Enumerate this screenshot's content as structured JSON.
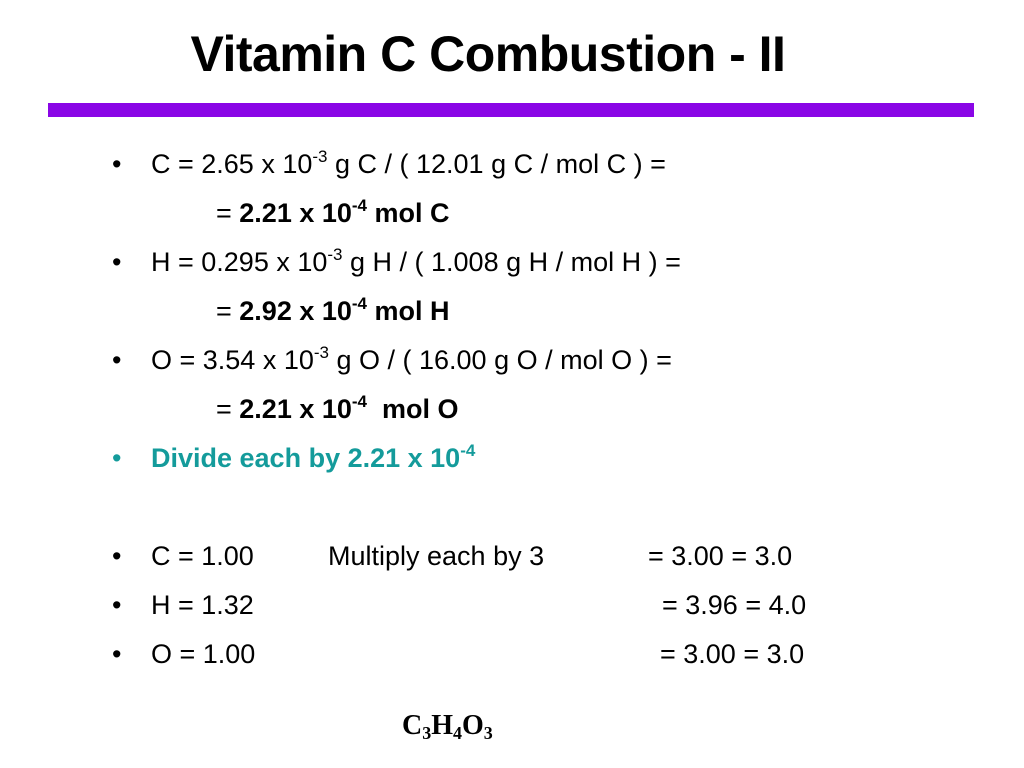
{
  "title": "Vitamin C Combustion - II",
  "accent_color": "#8a06e6",
  "highlight_color": "#149b9b",
  "bullet_glyph": "•",
  "carbon": {
    "calc_pre": "C = 2.65 x 10",
    "calc_exp": "-3",
    "calc_post": " g C / ( 12.01 g C / mol C ) =",
    "result_eq": "= ",
    "result_base": "2.21 x 10",
    "result_exp": "-4",
    "result_unit": " mol C"
  },
  "hydrogen": {
    "calc_pre": "H = 0.295 x 10",
    "calc_exp": "-3",
    "calc_post": " g H / ( 1.008 g H / mol H ) =",
    "result_eq": "= ",
    "result_base": "2.92 x 10",
    "result_exp": "-4",
    "result_unit": " mol H"
  },
  "oxygen": {
    "calc_pre": "O = 3.54 x 10",
    "calc_exp": "-3",
    "calc_post": " g O / ( 16.00 g O / mol O ) =",
    "result_eq": "= ",
    "result_base": "2.21 x 10",
    "result_exp": "-4",
    "result_unit": "  mol O"
  },
  "divide": {
    "text": "Divide each by 2.21 x 10",
    "exp": "-4"
  },
  "ratios": [
    {
      "label": "C = 1.00",
      "middle": "Multiply each by 3",
      "result": "= 3.00 = 3.0"
    },
    {
      "label": "H = 1.32",
      "middle": "",
      "result": "= 3.96 = 4.0"
    },
    {
      "label": "O = 1.00",
      "middle": "",
      "result": "= 3.00 = 3.0"
    }
  ],
  "formula": {
    "c": "C",
    "c_sub": "3",
    "h": "H",
    "h_sub": "4",
    "o": "O",
    "o_sub": "3"
  }
}
